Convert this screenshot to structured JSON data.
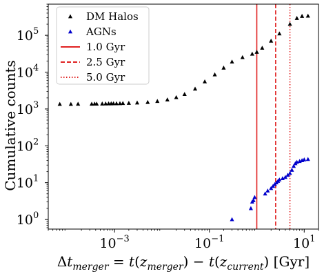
{
  "chart_data": {
    "type": "scatter",
    "xlabel": "Δt_merger = t(z_merger) − t(z_current) [Gyr]",
    "ylabel": "Cumulative counts",
    "xscale": "log",
    "yscale": "log",
    "xlim": [
      4e-05,
      20
    ],
    "ylim": [
      0.55,
      700000
    ],
    "x_ticks": [
      {
        "value": 0.001,
        "base": "10",
        "exp": "−3"
      },
      {
        "value": 0.1,
        "base": "10",
        "exp": "−1"
      },
      {
        "value": 10,
        "base": "10",
        "exp": "1"
      }
    ],
    "y_ticks": [
      {
        "value": 1,
        "base": "10",
        "exp": "0"
      },
      {
        "value": 10,
        "base": "10",
        "exp": "1"
      },
      {
        "value": 100,
        "base": "10",
        "exp": "2"
      },
      {
        "value": 1000,
        "base": "10",
        "exp": "3"
      },
      {
        "value": 10000,
        "base": "10",
        "exp": "4"
      },
      {
        "value": 100000,
        "base": "10",
        "exp": "5"
      }
    ],
    "legend_position": "top-left",
    "series": [
      {
        "name": "DM Halos",
        "color": "#000000",
        "marker": "triangle-up",
        "x": [
          7e-05,
          0.00012,
          0.00017,
          0.00033,
          0.00038,
          0.00042,
          0.00055,
          0.00065,
          0.00075,
          0.00085,
          0.00095,
          0.0011,
          0.0013,
          0.0015,
          0.002,
          0.003,
          0.005,
          0.008,
          0.013,
          0.02,
          0.03,
          0.05,
          0.08,
          0.13,
          0.2,
          0.3,
          0.5,
          0.8,
          1.0,
          1.3,
          2.0,
          3.0,
          5.0,
          7.0,
          9.0,
          12.0
        ],
        "y": [
          1350,
          1350,
          1360,
          1360,
          1370,
          1370,
          1380,
          1385,
          1390,
          1395,
          1400,
          1400,
          1410,
          1420,
          1440,
          1470,
          1520,
          1620,
          1780,
          2050,
          2500,
          3500,
          5500,
          8500,
          13000,
          19000,
          25000,
          31000,
          35000,
          45000,
          70000,
          110000,
          200000,
          290000,
          330000,
          335000
        ]
      },
      {
        "name": "AGNs",
        "color": "#0000cc",
        "marker": "triangle-up",
        "x": [
          0.3,
          0.75,
          0.8,
          0.85,
          0.9,
          1.5,
          1.7,
          2.0,
          2.2,
          2.4,
          2.6,
          2.8,
          3.0,
          3.5,
          4.0,
          4.5,
          5.0,
          5.5,
          6.0,
          6.5,
          7.0,
          8.0,
          9.0,
          10.0,
          12.0
        ],
        "y": [
          1,
          2,
          3,
          3.3,
          4,
          5,
          6,
          7,
          8,
          9,
          10,
          11,
          12,
          13,
          14,
          16,
          18,
          22,
          28,
          33,
          36,
          38,
          40,
          42,
          43
        ]
      }
    ],
    "vlines": [
      {
        "name": "1.0 Gyr",
        "x": 1.0,
        "color": "#e02020",
        "style": "solid"
      },
      {
        "name": "2.5 Gyr",
        "x": 2.5,
        "color": "#e02020",
        "style": "dashed"
      },
      {
        "name": "5.0 Gyr",
        "x": 5.0,
        "color": "#e02020",
        "style": "dotted"
      }
    ]
  }
}
